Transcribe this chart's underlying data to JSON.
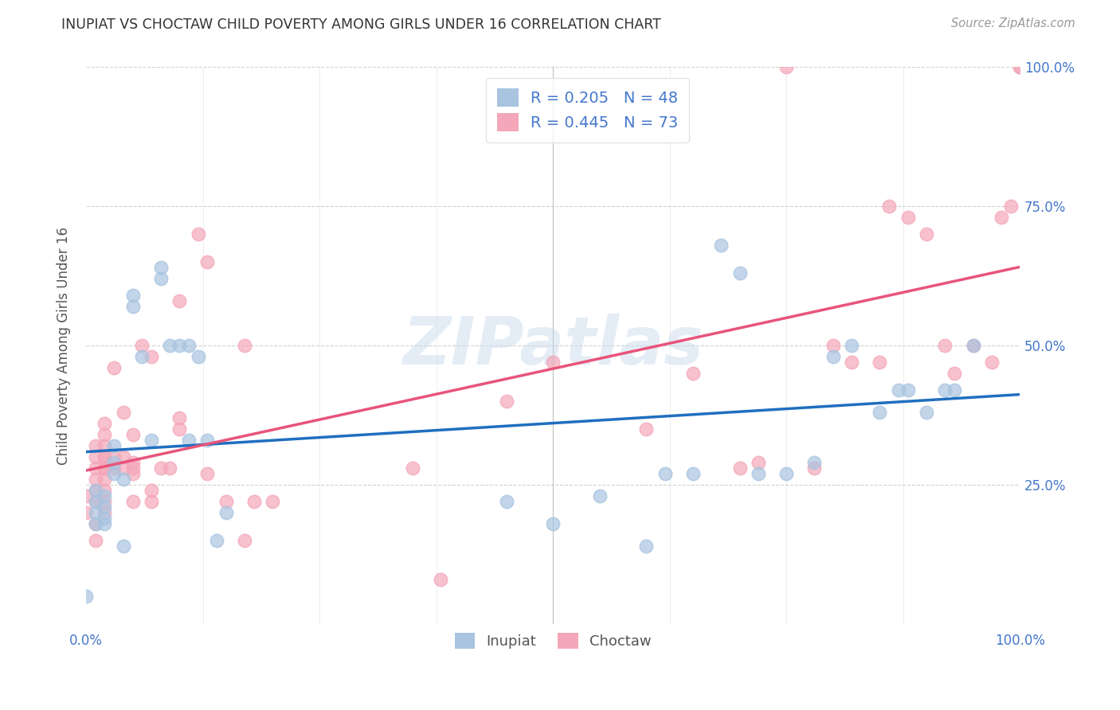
{
  "title": "INUPIAT VS CHOCTAW CHILD POVERTY AMONG GIRLS UNDER 16 CORRELATION CHART",
  "source": "Source: ZipAtlas.com",
  "ylabel": "Child Poverty Among Girls Under 16",
  "watermark": "ZIPatlas",
  "inupiat_R": 0.205,
  "inupiat_N": 48,
  "choctaw_R": 0.445,
  "choctaw_N": 73,
  "inupiat_color": "#a8c4e0",
  "choctaw_color": "#f4a7b9",
  "inupiat_line_color": "#1f6fbf",
  "choctaw_line_color": "#e8547a",
  "background_color": "#ffffff",
  "grid_color": "#cccccc",
  "title_color": "#333333",
  "axis_label_color": "#4477cc",
  "inupiat_x": [
    0.0,
    0.01,
    0.01,
    0.01,
    0.01,
    0.02,
    0.02,
    0.02,
    0.02,
    0.03,
    0.03,
    0.03,
    0.04,
    0.04,
    0.05,
    0.05,
    0.06,
    0.07,
    0.08,
    0.08,
    0.09,
    0.1,
    0.11,
    0.11,
    0.12,
    0.13,
    0.14,
    0.15,
    0.45,
    0.5,
    0.55,
    0.6,
    0.62,
    0.65,
    0.68,
    0.7,
    0.72,
    0.75,
    0.78,
    0.8,
    0.82,
    0.85,
    0.87,
    0.88,
    0.9,
    0.92,
    0.93,
    0.95
  ],
  "inupiat_y": [
    0.05,
    0.18,
    0.2,
    0.22,
    0.24,
    0.18,
    0.19,
    0.21,
    0.23,
    0.27,
    0.29,
    0.32,
    0.26,
    0.14,
    0.57,
    0.59,
    0.48,
    0.33,
    0.62,
    0.64,
    0.5,
    0.5,
    0.5,
    0.33,
    0.48,
    0.33,
    0.15,
    0.2,
    0.22,
    0.18,
    0.23,
    0.14,
    0.27,
    0.27,
    0.68,
    0.63,
    0.27,
    0.27,
    0.29,
    0.48,
    0.5,
    0.38,
    0.42,
    0.42,
    0.38,
    0.42,
    0.42,
    0.5
  ],
  "choctaw_x": [
    0.0,
    0.0,
    0.01,
    0.01,
    0.01,
    0.01,
    0.01,
    0.01,
    0.01,
    0.01,
    0.02,
    0.02,
    0.02,
    0.02,
    0.02,
    0.02,
    0.02,
    0.02,
    0.02,
    0.02,
    0.02,
    0.03,
    0.03,
    0.03,
    0.04,
    0.04,
    0.04,
    0.05,
    0.05,
    0.05,
    0.05,
    0.05,
    0.06,
    0.07,
    0.07,
    0.07,
    0.08,
    0.09,
    0.1,
    0.1,
    0.1,
    0.12,
    0.13,
    0.13,
    0.15,
    0.17,
    0.17,
    0.18,
    0.2,
    0.35,
    0.38,
    0.45,
    0.5,
    0.6,
    0.65,
    0.7,
    0.72,
    0.75,
    0.78,
    0.8,
    0.82,
    0.85,
    0.86,
    0.88,
    0.9,
    0.92,
    0.93,
    0.95,
    0.97,
    0.98,
    0.99,
    1.0,
    1.0
  ],
  "choctaw_y": [
    0.2,
    0.23,
    0.15,
    0.18,
    0.22,
    0.24,
    0.26,
    0.28,
    0.3,
    0.32,
    0.2,
    0.22,
    0.24,
    0.26,
    0.28,
    0.28,
    0.3,
    0.3,
    0.32,
    0.34,
    0.36,
    0.28,
    0.3,
    0.46,
    0.28,
    0.3,
    0.38,
    0.22,
    0.27,
    0.28,
    0.29,
    0.34,
    0.5,
    0.22,
    0.24,
    0.48,
    0.28,
    0.28,
    0.35,
    0.37,
    0.58,
    0.7,
    0.27,
    0.65,
    0.22,
    0.15,
    0.5,
    0.22,
    0.22,
    0.28,
    0.08,
    0.4,
    0.47,
    0.35,
    0.45,
    0.28,
    0.29,
    1.0,
    0.28,
    0.5,
    0.47,
    0.47,
    0.75,
    0.73,
    0.7,
    0.5,
    0.45,
    0.5,
    0.47,
    0.73,
    0.75,
    1.0,
    1.0
  ],
  "xlim": [
    0.0,
    1.0
  ],
  "ylim": [
    0.0,
    1.0
  ],
  "xtick_positions": [
    0.0,
    1.0
  ],
  "xticklabels": [
    "0.0%",
    "100.0%"
  ],
  "ytick_positions": [
    0.25,
    0.5,
    0.75,
    1.0
  ],
  "right_yticklabels": [
    "25.0%",
    "50.0%",
    "75.0%",
    "100.0%"
  ],
  "grid_yticks": [
    0.25,
    0.5,
    0.75,
    1.0
  ],
  "grid_xticks": [
    0.125,
    0.25,
    0.375,
    0.5,
    0.625,
    0.75,
    0.875
  ]
}
